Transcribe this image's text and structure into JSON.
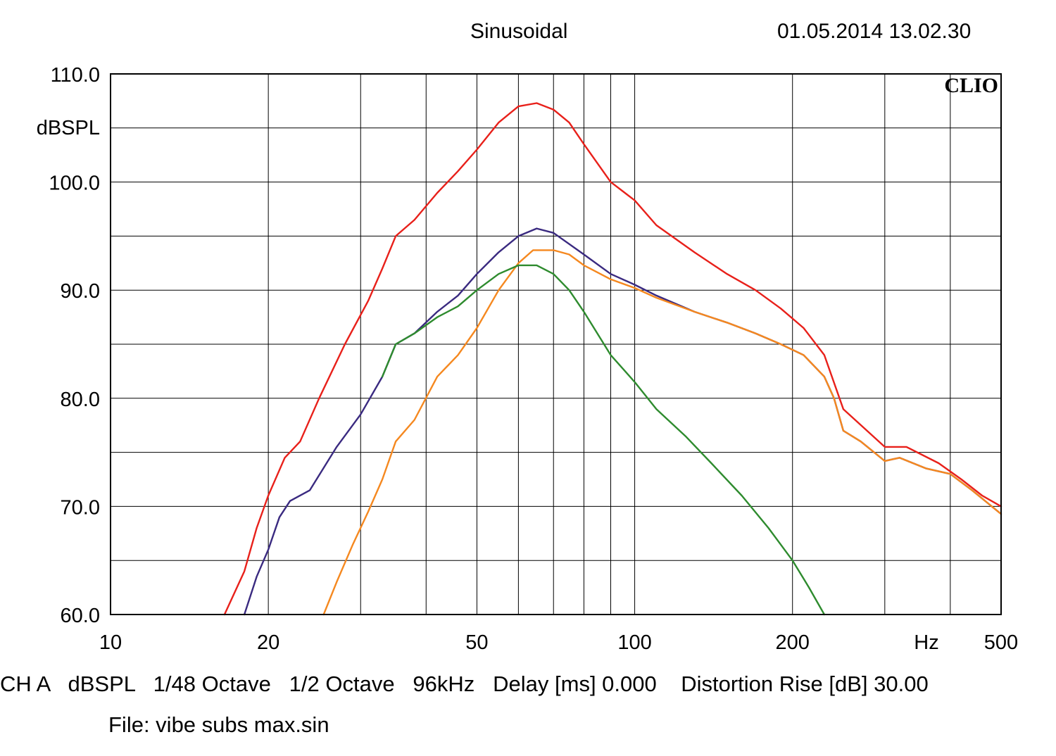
{
  "header": {
    "title": "Sinusoidal",
    "timestamp": "01.05.2014 13.02.30",
    "brand": "CLIO"
  },
  "footer": {
    "line1": "CH A   dBSPL   1/48 Octave   1/2 Octave   96kHz   Delay [ms] 0.000    Distortion Rise [dB] 30.00",
    "file": "File: vibe subs max.sin"
  },
  "chart_data": {
    "type": "line",
    "title": "Sinusoidal",
    "xlabel": "Hz",
    "ylabel": "dBSPL",
    "xscale": "log",
    "xlim": [
      10,
      500
    ],
    "ylim": [
      60,
      110
    ],
    "grid": true,
    "x_ticks": [
      10,
      20,
      50,
      100,
      200,
      500
    ],
    "x_tick_labels": [
      "10",
      "20",
      "50",
      "100",
      "200",
      "500"
    ],
    "y_ticks": [
      60,
      70,
      80,
      90,
      100,
      110
    ],
    "y_tick_labels": [
      "60.0",
      "70.0",
      "80.0",
      "90.0",
      "100.0",
      "110.0"
    ],
    "series": [
      {
        "color": "#e8201a",
        "points": [
          [
            16.5,
            60
          ],
          [
            18,
            64
          ],
          [
            19,
            68
          ],
          [
            20,
            71
          ],
          [
            21.5,
            74.5
          ],
          [
            23,
            76
          ],
          [
            25,
            80
          ],
          [
            28,
            85
          ],
          [
            31,
            89
          ],
          [
            33,
            92
          ],
          [
            35,
            95
          ],
          [
            38,
            96.5
          ],
          [
            42,
            99
          ],
          [
            46,
            101
          ],
          [
            50,
            103
          ],
          [
            55,
            105.5
          ],
          [
            60,
            107
          ],
          [
            65,
            107.3
          ],
          [
            70,
            106.7
          ],
          [
            75,
            105.5
          ],
          [
            80,
            103.5
          ],
          [
            90,
            100
          ],
          [
            100,
            98.3
          ],
          [
            110,
            96
          ],
          [
            130,
            93.5
          ],
          [
            150,
            91.5
          ],
          [
            170,
            90
          ],
          [
            190,
            88.3
          ],
          [
            210,
            86.5
          ],
          [
            230,
            84
          ],
          [
            250,
            79
          ],
          [
            300,
            75.5
          ],
          [
            330,
            75.5
          ],
          [
            380,
            74
          ],
          [
            420,
            72.5
          ],
          [
            460,
            71
          ],
          [
            500,
            70
          ]
        ]
      },
      {
        "color": "#3a2a80",
        "points": [
          [
            18,
            60
          ],
          [
            19,
            63.5
          ],
          [
            20,
            66
          ],
          [
            21,
            69
          ],
          [
            22,
            70.5
          ],
          [
            24,
            71.5
          ],
          [
            27,
            75.5
          ],
          [
            30,
            78.5
          ],
          [
            33,
            82
          ],
          [
            35,
            85
          ],
          [
            38,
            86
          ],
          [
            42,
            88
          ],
          [
            46,
            89.5
          ],
          [
            50,
            91.5
          ],
          [
            55,
            93.5
          ],
          [
            60,
            95
          ],
          [
            65,
            95.7
          ],
          [
            70,
            95.3
          ],
          [
            80,
            93.3
          ],
          [
            90,
            91.5
          ],
          [
            100,
            90.5
          ],
          [
            110,
            89.5
          ],
          [
            130,
            88
          ],
          [
            150,
            87
          ],
          [
            170,
            86
          ],
          [
            190,
            85
          ],
          [
            210,
            84
          ],
          [
            230,
            82
          ],
          [
            240,
            80
          ],
          [
            250,
            77
          ],
          [
            270,
            76
          ],
          [
            300,
            74.2
          ],
          [
            320,
            74.5
          ],
          [
            360,
            73.5
          ],
          [
            400,
            73
          ],
          [
            440,
            71.5
          ],
          [
            480,
            70
          ],
          [
            500,
            69.3
          ]
        ]
      },
      {
        "color": "#f5881f",
        "points": [
          [
            25.5,
            60
          ],
          [
            27,
            63
          ],
          [
            29,
            66.5
          ],
          [
            31,
            69.5
          ],
          [
            33,
            72.5
          ],
          [
            35,
            76
          ],
          [
            38,
            78
          ],
          [
            42,
            82
          ],
          [
            46,
            84
          ],
          [
            50,
            86.5
          ],
          [
            55,
            90
          ],
          [
            60,
            92.5
          ],
          [
            64,
            93.7
          ],
          [
            70,
            93.7
          ],
          [
            75,
            93.3
          ],
          [
            80,
            92.3
          ],
          [
            90,
            91
          ],
          [
            100,
            90.2
          ],
          [
            110,
            89.3
          ],
          [
            130,
            88
          ],
          [
            150,
            87
          ],
          [
            170,
            86
          ],
          [
            190,
            85
          ],
          [
            210,
            84
          ],
          [
            230,
            82
          ],
          [
            240,
            80
          ],
          [
            250,
            77
          ],
          [
            270,
            76
          ],
          [
            300,
            74.2
          ],
          [
            320,
            74.5
          ],
          [
            360,
            73.5
          ],
          [
            400,
            73
          ],
          [
            440,
            71.5
          ],
          [
            480,
            70
          ],
          [
            500,
            69.3
          ]
        ]
      },
      {
        "color": "#2e8b2e",
        "points": [
          [
            33,
            82
          ],
          [
            35,
            85
          ],
          [
            38,
            86
          ],
          [
            42,
            87.5
          ],
          [
            46,
            88.5
          ],
          [
            50,
            90
          ],
          [
            55,
            91.5
          ],
          [
            60,
            92.3
          ],
          [
            65,
            92.3
          ],
          [
            70,
            91.5
          ],
          [
            75,
            90
          ],
          [
            80,
            88
          ],
          [
            90,
            84
          ],
          [
            100,
            81.5
          ],
          [
            110,
            79
          ],
          [
            125,
            76.5
          ],
          [
            140,
            74
          ],
          [
            160,
            71
          ],
          [
            180,
            68
          ],
          [
            200,
            65
          ],
          [
            215,
            62.5
          ],
          [
            230,
            60
          ]
        ]
      }
    ]
  }
}
